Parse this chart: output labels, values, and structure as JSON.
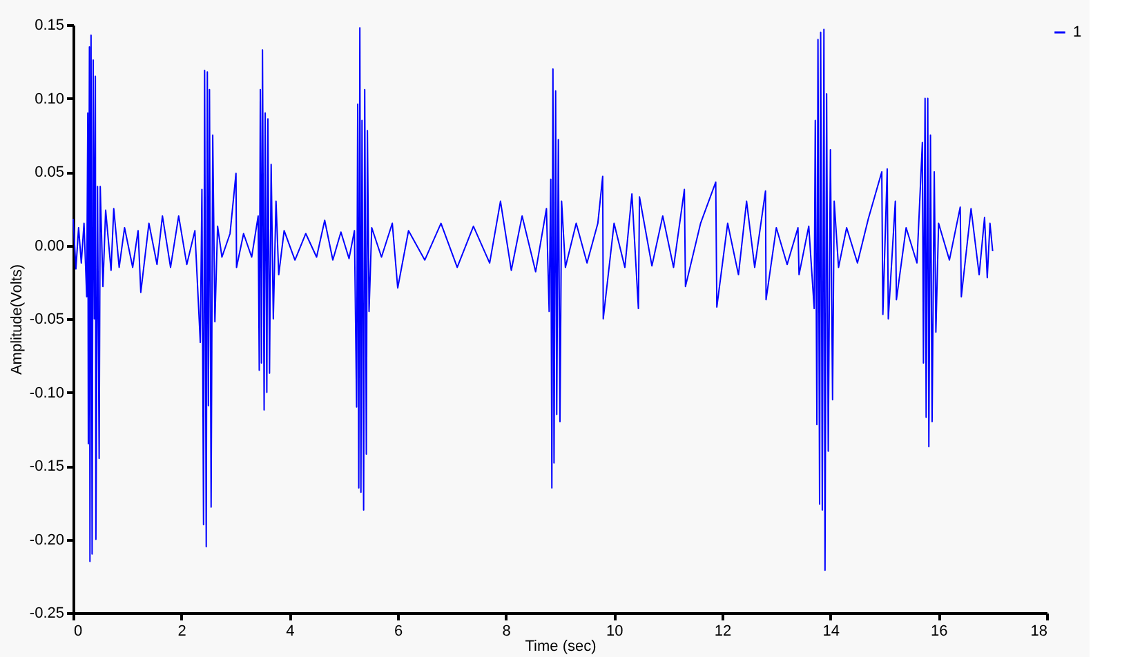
{
  "chart_data": {
    "type": "line",
    "xlabel": "Time (sec)",
    "ylabel": "Amplitude(Volts)",
    "xlim": [
      0,
      18
    ],
    "xticks": [
      0,
      2,
      4,
      6,
      8,
      10,
      12,
      14,
      16,
      18
    ],
    "ylim": [
      -0.25,
      0.15
    ],
    "yticks": [
      {
        "value": -0.25,
        "label": "-0.25"
      },
      {
        "value": -0.2,
        "label": "-0.20"
      },
      {
        "value": -0.15,
        "label": "-0.15"
      },
      {
        "value": -0.1,
        "label": "-0.10"
      },
      {
        "value": -0.05,
        "label": "-0.05"
      },
      {
        "value": 0,
        "label": "0.00"
      },
      {
        "value": 0.05,
        "label": "0.05"
      },
      {
        "value": 0.1,
        "label": "0.10"
      },
      {
        "value": 0.15,
        "label": "0.15"
      }
    ],
    "grid": false,
    "legend": "right",
    "marker": "none",
    "line_style": "solid",
    "series": [
      {
        "name": "1",
        "color": "#0000ff",
        "x": [
          0.0,
          0.05,
          0.1,
          0.15,
          0.2,
          0.25,
          0.27,
          0.28,
          0.3,
          0.31,
          0.33,
          0.35,
          0.37,
          0.39,
          0.41,
          0.42,
          0.45,
          0.48,
          0.5,
          0.55,
          0.6,
          0.7,
          0.75,
          0.85,
          0.95,
          1.1,
          1.2,
          1.25,
          1.4,
          1.55,
          1.65,
          1.8,
          1.95,
          2.1,
          2.25,
          2.35,
          2.38,
          2.41,
          2.43,
          2.46,
          2.48,
          2.5,
          2.52,
          2.55,
          2.58,
          2.62,
          2.67,
          2.75,
          2.9,
          3.01,
          3.02,
          3.15,
          3.3,
          3.42,
          3.44,
          3.46,
          3.48,
          3.5,
          3.53,
          3.55,
          3.58,
          3.6,
          3.63,
          3.66,
          3.7,
          3.75,
          3.8,
          3.9,
          4.1,
          4.3,
          4.5,
          4.65,
          4.8,
          4.95,
          5.1,
          5.2,
          5.24,
          5.26,
          5.28,
          5.3,
          5.32,
          5.34,
          5.37,
          5.39,
          5.42,
          5.44,
          5.47,
          5.52,
          5.7,
          5.9,
          6.0,
          6.2,
          6.5,
          6.8,
          7.1,
          7.4,
          7.7,
          7.9,
          8.1,
          8.3,
          8.55,
          8.75,
          8.8,
          8.83,
          8.85,
          8.87,
          8.89,
          8.92,
          8.94,
          8.97,
          9.0,
          9.03,
          9.1,
          9.3,
          9.5,
          9.7,
          9.79,
          9.8,
          10.0,
          10.2,
          10.33,
          10.45,
          10.47,
          10.7,
          10.9,
          11.1,
          11.3,
          11.32,
          11.6,
          11.88,
          11.9,
          12.1,
          12.3,
          12.45,
          12.6,
          12.8,
          12.81,
          13.0,
          13.2,
          13.4,
          13.42,
          13.6,
          13.7,
          13.72,
          13.75,
          13.77,
          13.8,
          13.82,
          13.85,
          13.88,
          13.9,
          13.93,
          13.96,
          14.0,
          14.04,
          14.07,
          14.15,
          14.3,
          14.5,
          14.7,
          14.95,
          14.97,
          15.05,
          15.07,
          15.2,
          15.22,
          15.4,
          15.6,
          15.7,
          15.72,
          15.75,
          15.77,
          15.8,
          15.82,
          15.85,
          15.88,
          15.92,
          15.95,
          16.0,
          16.2,
          16.4,
          16.42,
          16.6,
          16.75,
          16.85,
          16.9,
          16.95,
          17.0
        ],
        "values": [
          0.018,
          -0.016,
          0.012,
          -0.012,
          0.015,
          -0.035,
          0.09,
          -0.135,
          0.135,
          -0.215,
          0.143,
          -0.21,
          0.126,
          -0.05,
          0.115,
          -0.2,
          0.04,
          -0.145,
          0.04,
          -0.028,
          0.024,
          -0.017,
          0.025,
          -0.015,
          0.012,
          -0.015,
          0.01,
          -0.032,
          0.015,
          -0.013,
          0.02,
          -0.015,
          0.02,
          -0.013,
          0.01,
          -0.066,
          0.038,
          -0.19,
          0.119,
          -0.205,
          0.118,
          -0.109,
          0.106,
          -0.178,
          0.075,
          -0.052,
          0.013,
          -0.008,
          0.008,
          0.049,
          -0.015,
          0.008,
          -0.008,
          0.02,
          -0.085,
          0.106,
          -0.08,
          0.133,
          -0.112,
          0.09,
          -0.1,
          0.086,
          -0.087,
          0.055,
          -0.05,
          0.03,
          -0.02,
          0.01,
          -0.01,
          0.008,
          -0.008,
          0.017,
          -0.01,
          0.009,
          -0.009,
          0.01,
          -0.11,
          0.096,
          -0.165,
          0.148,
          -0.168,
          0.085,
          -0.18,
          0.106,
          -0.142,
          0.078,
          -0.045,
          0.012,
          -0.008,
          0.015,
          -0.029,
          0.01,
          -0.01,
          0.015,
          -0.015,
          0.013,
          -0.012,
          0.03,
          -0.017,
          0.02,
          -0.018,
          0.025,
          -0.045,
          0.045,
          -0.165,
          0.12,
          -0.148,
          0.105,
          -0.115,
          0.072,
          -0.12,
          0.03,
          -0.015,
          0.015,
          -0.012,
          0.015,
          0.047,
          -0.05,
          0.015,
          -0.015,
          0.035,
          -0.043,
          0.033,
          -0.014,
          0.02,
          -0.015,
          0.038,
          -0.028,
          0.015,
          0.043,
          -0.042,
          0.015,
          -0.02,
          0.03,
          -0.015,
          0.037,
          -0.037,
          0.012,
          -0.013,
          0.012,
          -0.02,
          0.013,
          -0.043,
          0.085,
          -0.122,
          0.14,
          -0.176,
          0.145,
          -0.18,
          0.147,
          -0.221,
          0.103,
          -0.14,
          0.065,
          -0.105,
          0.03,
          -0.015,
          0.012,
          -0.012,
          0.018,
          0.05,
          -0.047,
          0.052,
          -0.05,
          0.03,
          -0.037,
          0.012,
          -0.012,
          0.07,
          -0.08,
          0.1,
          -0.117,
          0.1,
          -0.137,
          0.075,
          -0.12,
          0.05,
          -0.059,
          0.015,
          -0.01,
          0.026,
          -0.035,
          0.025,
          -0.02,
          0.019,
          -0.022,
          0.015,
          -0.004
        ]
      }
    ]
  }
}
